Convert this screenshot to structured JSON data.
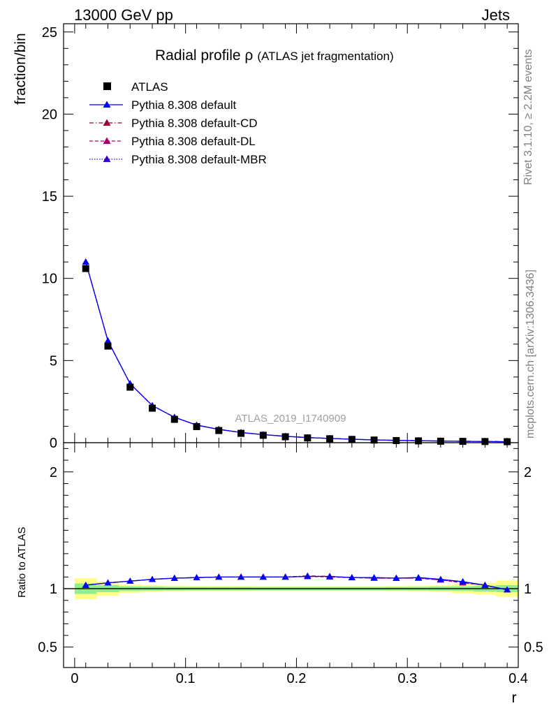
{
  "header": {
    "left": "13000 GeV pp",
    "right": "Jets"
  },
  "title": {
    "main": "Radial profile ",
    "symbol": "ρ",
    "sub": "(ATLAS jet fragmentation)"
  },
  "side_labels": {
    "rivet": "Rivet 3.1.10, ≥ 2.2M events",
    "mcplots": "mcplots.cern.ch [arXiv:1306.3436]"
  },
  "watermark": "ATLAS_2019_I1740909",
  "colors": {
    "data": "#000000",
    "default": "#0000ff",
    "cd": "#990033",
    "dl": "#aa0066",
    "mbr": "#3300cc",
    "band_inner": "#90ee90",
    "band_outer": "#ffff88"
  },
  "chart_data": [
    {
      "type": "scatter",
      "panel": "main",
      "ylabel": "fraction/bin",
      "xlim": [
        -0.01,
        0.4
      ],
      "ylim": [
        0,
        25.5
      ],
      "yticks": [
        0,
        5,
        10,
        15,
        20,
        25
      ],
      "x": [
        0.01,
        0.03,
        0.05,
        0.07,
        0.09,
        0.11,
        0.13,
        0.15,
        0.17,
        0.19,
        0.21,
        0.23,
        0.25,
        0.27,
        0.29,
        0.31,
        0.33,
        0.35,
        0.37,
        0.39
      ],
      "series": [
        {
          "name": "ATLAS",
          "style": "markers",
          "values": [
            10.6,
            5.88,
            3.38,
            2.1,
            1.42,
            0.98,
            0.74,
            0.57,
            0.45,
            0.36,
            0.29,
            0.24,
            0.2,
            0.16,
            0.13,
            0.11,
            0.09,
            0.08,
            0.07,
            0.06
          ]
        },
        {
          "name": "Pythia 8.308 default",
          "style": "solid",
          "values": [
            11.0,
            6.2,
            3.59,
            2.26,
            1.55,
            1.07,
            0.81,
            0.62,
            0.49,
            0.39,
            0.31,
            0.26,
            0.21,
            0.17,
            0.14,
            0.12,
            0.1,
            0.085,
            0.075,
            0.06
          ]
        },
        {
          "name": "Pythia 8.308 default-CD",
          "style": "dashdot",
          "values": [
            11.0,
            6.2,
            3.59,
            2.26,
            1.55,
            1.07,
            0.81,
            0.62,
            0.49,
            0.39,
            0.31,
            0.26,
            0.21,
            0.17,
            0.14,
            0.12,
            0.1,
            0.085,
            0.075,
            0.06
          ]
        },
        {
          "name": "Pythia 8.308 default-DL",
          "style": "dashed",
          "values": [
            11.0,
            6.2,
            3.59,
            2.26,
            1.55,
            1.07,
            0.81,
            0.62,
            0.49,
            0.39,
            0.31,
            0.26,
            0.21,
            0.17,
            0.14,
            0.12,
            0.1,
            0.085,
            0.075,
            0.06
          ]
        },
        {
          "name": "Pythia 8.308 default-MBR",
          "style": "dotted",
          "values": [
            11.0,
            6.2,
            3.59,
            2.26,
            1.55,
            1.07,
            0.81,
            0.62,
            0.49,
            0.39,
            0.31,
            0.26,
            0.21,
            0.17,
            0.14,
            0.12,
            0.1,
            0.085,
            0.075,
            0.06
          ]
        }
      ]
    },
    {
      "type": "line",
      "panel": "ratio",
      "ylabel": "Ratio to ATLAS",
      "xlabel": "r",
      "xlim": [
        -0.01,
        0.4
      ],
      "ylim": [
        0.325,
        2.25
      ],
      "yticks": [
        0.5,
        1,
        2
      ],
      "ytick_labels": [
        "0.5",
        "1",
        "2"
      ],
      "xticks": [
        0,
        0.1,
        0.2,
        0.3,
        0.4
      ],
      "xtick_labels": [
        "0",
        "0.1",
        "0.2",
        "0.3",
        "0.4"
      ],
      "x": [
        0.01,
        0.03,
        0.05,
        0.07,
        0.09,
        0.11,
        0.13,
        0.15,
        0.17,
        0.19,
        0.21,
        0.23,
        0.25,
        0.27,
        0.29,
        0.31,
        0.33,
        0.35,
        0.37,
        0.39
      ],
      "bins": [
        [
          0,
          0.02
        ],
        [
          0.02,
          0.04
        ],
        [
          0.04,
          0.06
        ],
        [
          0.06,
          0.08
        ],
        [
          0.08,
          0.1
        ],
        [
          0.1,
          0.12
        ],
        [
          0.12,
          0.14
        ],
        [
          0.14,
          0.16
        ],
        [
          0.16,
          0.18
        ],
        [
          0.18,
          0.2
        ],
        [
          0.2,
          0.22
        ],
        [
          0.22,
          0.24
        ],
        [
          0.24,
          0.26
        ],
        [
          0.26,
          0.28
        ],
        [
          0.28,
          0.3
        ],
        [
          0.3,
          0.32
        ],
        [
          0.32,
          0.34
        ],
        [
          0.34,
          0.36
        ],
        [
          0.36,
          0.38
        ],
        [
          0.38,
          0.4
        ]
      ],
      "band_inner": [
        0.045,
        0.03,
        0.02,
        0.018,
        0.016,
        0.015,
        0.015,
        0.015,
        0.015,
        0.015,
        0.015,
        0.015,
        0.015,
        0.015,
        0.015,
        0.016,
        0.018,
        0.02,
        0.025,
        0.03
      ],
      "band_outer": [
        0.09,
        0.06,
        0.035,
        0.03,
        0.025,
        0.022,
        0.022,
        0.022,
        0.02,
        0.02,
        0.02,
        0.02,
        0.02,
        0.02,
        0.022,
        0.025,
        0.03,
        0.04,
        0.05,
        0.07
      ],
      "series": [
        {
          "name": "Pythia 8.308 default",
          "values": [
            1.03,
            1.05,
            1.065,
            1.08,
            1.09,
            1.095,
            1.1,
            1.1,
            1.1,
            1.1,
            1.105,
            1.105,
            1.095,
            1.095,
            1.09,
            1.095,
            1.08,
            1.06,
            1.03,
            0.99
          ]
        },
        {
          "name": "Pythia 8.308 default-CD",
          "values": [
            1.03,
            1.05,
            1.065,
            1.08,
            1.09,
            1.095,
            1.1,
            1.1,
            1.1,
            1.1,
            1.11,
            1.105,
            1.095,
            1.09,
            1.09,
            1.09,
            1.075,
            1.055,
            1.03,
            0.99
          ]
        },
        {
          "name": "Pythia 8.308 default-DL",
          "values": [
            1.03,
            1.05,
            1.065,
            1.08,
            1.09,
            1.095,
            1.1,
            1.1,
            1.1,
            1.1,
            1.105,
            1.1,
            1.095,
            1.09,
            1.09,
            1.09,
            1.075,
            1.05,
            1.03,
            0.99
          ]
        },
        {
          "name": "Pythia 8.308 default-MBR",
          "values": [
            1.03,
            1.05,
            1.065,
            1.08,
            1.09,
            1.095,
            1.1,
            1.1,
            1.1,
            1.1,
            1.105,
            1.105,
            1.095,
            1.095,
            1.09,
            1.095,
            1.08,
            1.06,
            1.03,
            0.99
          ]
        }
      ]
    }
  ]
}
